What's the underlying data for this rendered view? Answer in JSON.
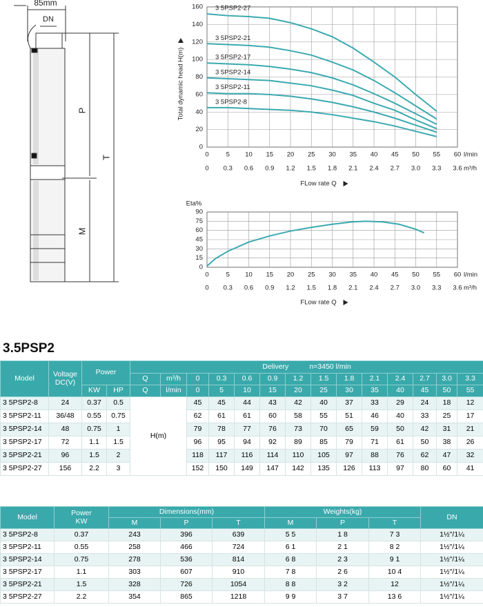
{
  "drawing": {
    "width_label": "85mm",
    "dn": "DN",
    "p": "P",
    "t": "T",
    "m": "M"
  },
  "chart_data": [
    {
      "type": "line",
      "y_label": "Total dynamic head H(m)",
      "x_label": "FLow rate Q",
      "x_unit": "l/min",
      "x2_unit": "m³/h",
      "x": [
        0,
        5,
        10,
        15,
        20,
        25,
        30,
        35,
        40,
        45,
        50,
        55
      ],
      "xlim": [
        0,
        60
      ],
      "xticks": [
        0,
        5,
        10,
        15,
        20,
        25,
        30,
        35,
        40,
        45,
        50,
        55,
        60
      ],
      "x2lim": [
        0,
        3.6
      ],
      "x2ticks": [
        0,
        0.3,
        0.6,
        0.9,
        1.2,
        1.5,
        1.8,
        2.1,
        2.4,
        2.7,
        {
          "value": 3,
          "label": "3.0"
        },
        3.3,
        3.6
      ],
      "ylim": [
        0,
        160
      ],
      "yticks": [
        0,
        20,
        40,
        60,
        80,
        100,
        120,
        140,
        160
      ],
      "grid": true,
      "color": "#3aa9b0",
      "series": [
        {
          "name": "3 5PSP2-8",
          "values": [
            45,
            45,
            44,
            43,
            42,
            40,
            37,
            33,
            29,
            24,
            18,
            12
          ]
        },
        {
          "name": "3 5PSP2-11",
          "values": [
            62,
            61,
            61,
            60,
            58,
            55,
            51,
            46,
            40,
            33,
            25,
            17
          ]
        },
        {
          "name": "3 5PSP2-14",
          "values": [
            79,
            78,
            77,
            76,
            73,
            70,
            65,
            59,
            50,
            42,
            31,
            21
          ]
        },
        {
          "name": "3 5PSP2-17",
          "values": [
            96,
            95,
            94,
            92,
            89,
            85,
            79,
            71,
            61,
            50,
            38,
            26
          ]
        },
        {
          "name": "3 5PSP2-21",
          "values": [
            118,
            117,
            116,
            114,
            110,
            105,
            97,
            88,
            76,
            62,
            47,
            32
          ]
        },
        {
          "name": "3 5PSP2-27",
          "values": [
            152,
            150,
            149,
            147,
            142,
            135,
            126,
            113,
            97,
            80,
            60,
            41
          ]
        }
      ]
    },
    {
      "type": "line",
      "y_label": "Eta%",
      "x_label": "FLow rate Q",
      "x_unit": "l/min",
      "x2_unit": "m³/h",
      "x": [
        0,
        2,
        5,
        10,
        15,
        20,
        25,
        30,
        35,
        38,
        42,
        46,
        50,
        52
      ],
      "values": [
        2,
        14,
        26,
        41,
        51,
        59,
        65,
        70,
        74,
        75,
        74,
        70,
        62,
        56
      ],
      "xlim": [
        0,
        60
      ],
      "xticks": [
        0,
        5,
        10,
        15,
        20,
        25,
        30,
        35,
        40,
        45,
        50,
        55,
        60
      ],
      "x2lim": [
        0,
        3.6
      ],
      "x2ticks": [
        0,
        0.3,
        0.6,
        0.9,
        1.2,
        1.5,
        1.8,
        2.1,
        2.4,
        2.7,
        {
          "value": 3,
          "label": "3.0"
        },
        3.3,
        3.6
      ],
      "ylim": [
        0,
        90
      ],
      "yticks": [
        0,
        15,
        30,
        45,
        60,
        75,
        90
      ],
      "grid": true,
      "color": "#3aa9b0"
    }
  ],
  "table1": {
    "title": "3.5PSP2",
    "header": {
      "model": "Model",
      "voltage": "Voltage DC(V)",
      "power": "Power",
      "kw": "KW",
      "hp": "HP",
      "delivery": "Delivery",
      "speed": "n=3450 l/min",
      "q": "Q",
      "h": "H(m)"
    },
    "rows": [
      [
        "24",
        "0.37",
        "0.5"
      ],
      [
        "36/48",
        "0.55",
        "0.75"
      ],
      [
        "48",
        "0.75",
        "1"
      ],
      [
        "72",
        "1.1",
        "1.5"
      ],
      [
        "96",
        "1.5",
        "2"
      ],
      [
        "156",
        "2.2",
        "3"
      ]
    ]
  },
  "table2": {
    "header": {
      "model": "Model",
      "power": "Power",
      "power_unit": "KW",
      "dimensions": "Dimensions(mm)",
      "weights": "Weights(kg)",
      "m": "M",
      "p": "P",
      "t": "T",
      "dn": "DN"
    },
    "rows": [
      [
        "243",
        "396",
        "639",
        "5 5",
        "1 8",
        "7 3",
        "1½\"/1¼"
      ],
      [
        "258",
        "466",
        "724",
        "6 1",
        "2 1",
        "8 2",
        "1½\"/1¼"
      ],
      [
        "278",
        "536",
        "814",
        "6 8",
        "2 3",
        "9 1",
        "1½\"/1¼"
      ],
      [
        "303",
        "607",
        "910",
        "7 8",
        "2 6",
        "10 4",
        "1½\"/1¼"
      ],
      [
        "328",
        "726",
        "1054",
        "8 8",
        "3 2",
        "12",
        "1½\"/1¼"
      ],
      [
        "354",
        "865",
        "1218",
        "9 9",
        "3 7",
        "13 6",
        "1½\"/1¼"
      ]
    ]
  }
}
